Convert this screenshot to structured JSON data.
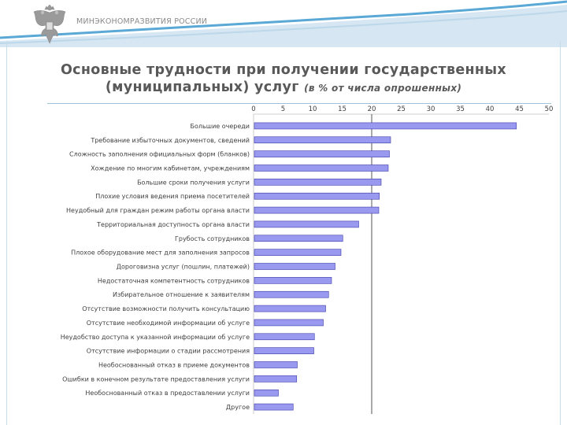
{
  "header": {
    "ministry": "МИНЭКОНОМРАЗВИТИЯ РОССИИ",
    "title_line1": "Основные трудности при получении государственных",
    "title_line2": "(муниципальных) услуг",
    "title_note": "(в % от числа опрошенных)"
  },
  "colors": {
    "bar_fill": "#9a99f0",
    "bar_stroke": "#3b3ba8",
    "accent_line": "#555555",
    "header_wave": "#d6e6f2"
  },
  "chart_data": {
    "type": "bar",
    "orientation": "horizontal",
    "title": "",
    "xlabel": "",
    "ylabel": "",
    "xlim": [
      0,
      50
    ],
    "xticks": [
      0,
      5,
      10,
      15,
      20,
      25,
      30,
      35,
      40,
      45,
      50
    ],
    "reference_line": 20,
    "grid": false,
    "categories": [
      "Большие очереди",
      "Требование избыточных документов, сведений",
      "Сложность заполнения официальных форм (бланков)",
      "Хождение по многим кабинетам, учреждениям",
      "Большие сроки получения услуги",
      "Плохие условия ведения приема посетителей",
      "Неудобный для граждан режим работы органа власти",
      "Территориальная доступность органа власти",
      "Грубость сотрудников",
      "Плохое оборудование мест для заполнения запросов",
      "Дороговизна услуг (пошлин, платежей)",
      "Недостаточная компетентность сотрудников",
      "Избирательное отношение к заявителям",
      "Отсутствие возможности получить консультацию",
      "Отсутствие необходимой информации об услуге",
      "Неудобство доступа к указанной информации об услуге",
      "Отсутствие информации о стадии рассмотрения",
      "Необоснованный отказ в приеме документов",
      "Ошибки в конечном результате предоставления услуги",
      "Необоснованный отказ в предоставлении услуги",
      "Другое"
    ],
    "values": [
      44.5,
      23.2,
      23.0,
      22.8,
      21.6,
      21.3,
      21.2,
      17.8,
      15.1,
      14.8,
      13.8,
      13.2,
      12.7,
      12.2,
      11.8,
      10.3,
      10.2,
      7.4,
      7.3,
      4.2,
      6.7
    ]
  }
}
